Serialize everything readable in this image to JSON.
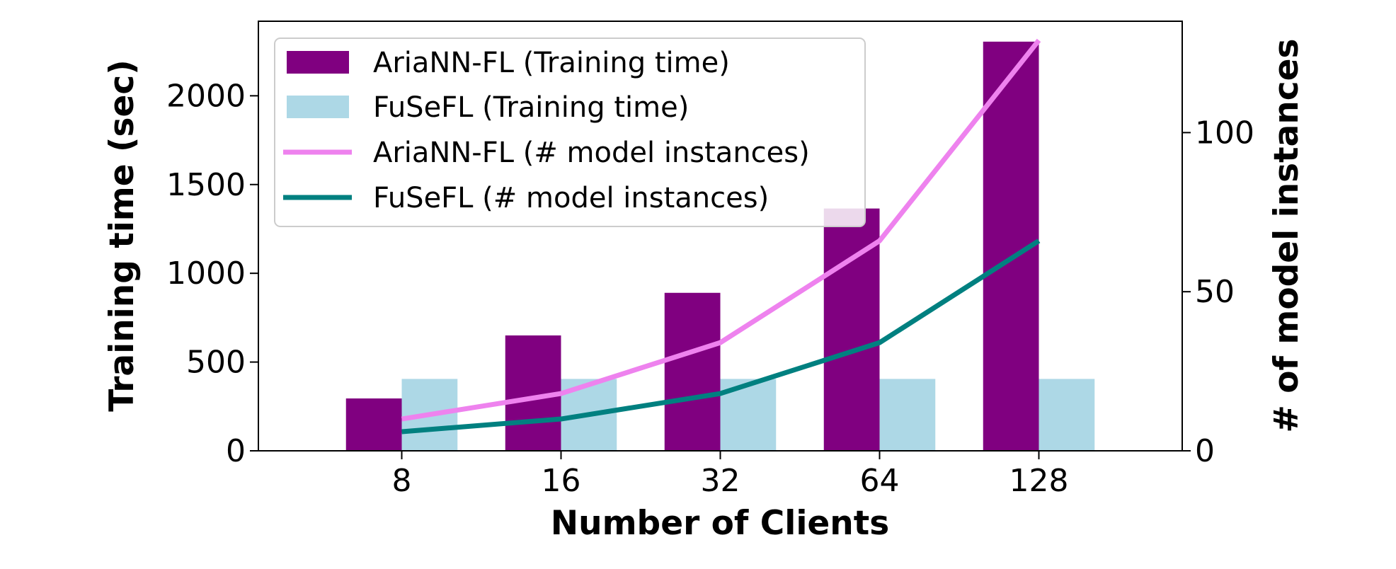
{
  "chart_data": {
    "type": "bar",
    "categories": [
      "8",
      "16",
      "32",
      "64",
      "128"
    ],
    "xlabel": "Number of Clients",
    "ylabel": "Training time (sec)",
    "y2label": "# of model instances",
    "ylim": [
      0,
      2420
    ],
    "y2lim": [
      0,
      135
    ],
    "yticks": [
      0,
      500,
      1000,
      1500,
      2000
    ],
    "y2ticks": [
      0,
      50,
      100
    ],
    "grid": false,
    "legend_position": "top-left",
    "series": [
      {
        "name": "AriaNN-FL (Training time)",
        "kind": "bar",
        "axis": "left",
        "color": "#800080",
        "values": [
          295,
          650,
          890,
          1365,
          2305
        ]
      },
      {
        "name": "FuSeFL (Training time)",
        "kind": "bar",
        "axis": "left",
        "color": "#add8e6",
        "values": [
          405,
          405,
          405,
          405,
          405
        ]
      },
      {
        "name": "AriaNN-FL (# model instances)",
        "kind": "line",
        "axis": "right",
        "color": "#ee82ee",
        "values": [
          10,
          18,
          34,
          66,
          129
        ]
      },
      {
        "name": "FuSeFL (# model instances)",
        "kind": "line",
        "axis": "right",
        "color": "#008080",
        "values": [
          6,
          10,
          18,
          34,
          66
        ]
      }
    ]
  }
}
